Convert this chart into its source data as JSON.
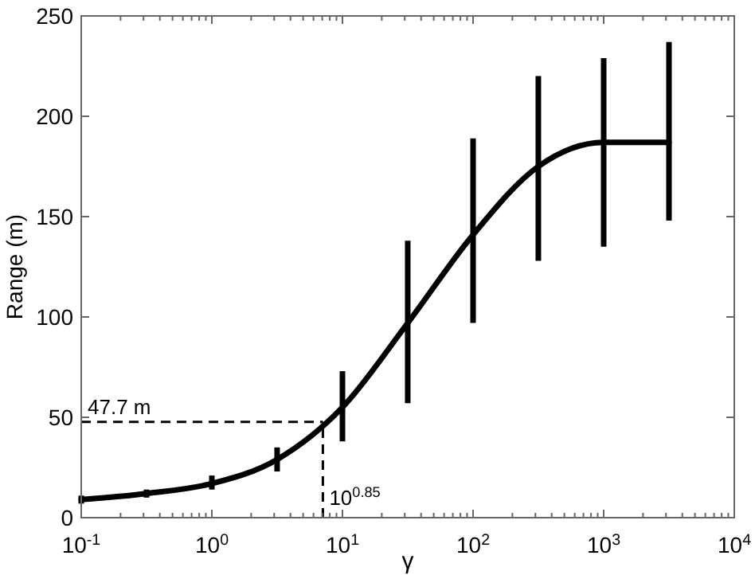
{
  "chart_data": {
    "type": "line",
    "xlabel": "γ",
    "ylabel": "Range (m)",
    "log": "x",
    "marker": "none",
    "line_style": "solid",
    "xlim": [
      0.1,
      10000
    ],
    "ylim": [
      0,
      250
    ],
    "xticks": [
      {
        "value": 0.1,
        "label": "10$^{-1}$"
      },
      {
        "value": 1,
        "label": "10$^{0}$"
      },
      {
        "value": 10,
        "label": "10$^{1}$"
      },
      {
        "value": 100,
        "label": "10$^{2}$"
      },
      {
        "value": 1000,
        "label": "10$^{3}$"
      },
      {
        "value": 10000,
        "label": "10$^{4}$"
      }
    ],
    "yticks": [
      0,
      50,
      100,
      150,
      200,
      250
    ],
    "series": [
      {
        "color": "#000000",
        "x": [
          0.1,
          0.316,
          1,
          3.16,
          10,
          31.6,
          100,
          316,
          1000,
          3162
        ],
        "values": [
          9,
          12,
          17,
          29,
          55,
          97,
          141,
          175,
          187,
          187
        ],
        "errors": [
          [
            7,
            11
          ],
          [
            10,
            14
          ],
          [
            14,
            21
          ],
          [
            23,
            35
          ],
          [
            38,
            73
          ],
          [
            57,
            138
          ],
          [
            97,
            189
          ],
          [
            128,
            220
          ],
          [
            135,
            229
          ],
          [
            148,
            237
          ]
        ]
      }
    ],
    "ref_lines": [
      {
        "axis": "y",
        "value": 47.7,
        "label": "47.7 m",
        "line_style": "dashed"
      },
      {
        "axis": "x",
        "value": 7.0795,
        "line_style": "dashed"
      }
    ],
    "annotations": [
      "10$^{0.85}$"
    ]
  }
}
